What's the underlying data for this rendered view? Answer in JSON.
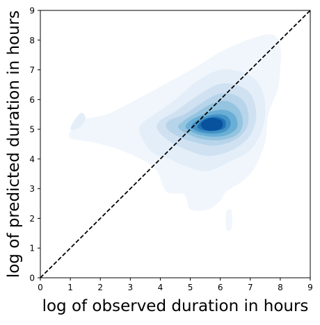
{
  "chart_data": {
    "type": "kde-contour",
    "title": "",
    "xlabel": "log of observed duration in hours",
    "ylabel": "log of predicted duration in hours",
    "xlim": [
      0,
      9
    ],
    "ylim": [
      0,
      9
    ],
    "xticks": [
      0,
      1,
      2,
      3,
      4,
      5,
      6,
      7,
      8,
      9
    ],
    "yticks": [
      0,
      1,
      2,
      3,
      4,
      5,
      6,
      7,
      8,
      9
    ],
    "grid": false,
    "colormap": "Blues",
    "mode": {
      "x": 5.65,
      "y": 5.15
    },
    "reference_line": {
      "style": "dashed",
      "color": "#000000",
      "points": [
        [
          0,
          0
        ],
        [
          9,
          9
        ]
      ]
    },
    "density_levels": [
      {
        "level": 1,
        "color": "#f1f6fc",
        "outline": [
          [
            1.0,
            4.7
          ],
          [
            1.8,
            4.55
          ],
          [
            2.8,
            4.25
          ],
          [
            3.8,
            3.7
          ],
          [
            4.2,
            2.9
          ],
          [
            4.8,
            2.8
          ],
          [
            5.0,
            2.3
          ],
          [
            5.6,
            2.3
          ],
          [
            6.0,
            2.6
          ],
          [
            6.2,
            2.9
          ],
          [
            6.8,
            3.3
          ],
          [
            7.2,
            3.8
          ],
          [
            7.5,
            4.6
          ],
          [
            7.6,
            5.5
          ],
          [
            7.9,
            6.3
          ],
          [
            8.0,
            7.0
          ],
          [
            8.0,
            7.8
          ],
          [
            7.7,
            8.2
          ],
          [
            6.9,
            8.0
          ],
          [
            6.0,
            7.6
          ],
          [
            5.2,
            7.1
          ],
          [
            4.3,
            6.6
          ],
          [
            3.2,
            6.0
          ],
          [
            2.2,
            5.5
          ],
          [
            1.3,
            5.3
          ],
          [
            1.05,
            5.0
          ]
        ]
      },
      {
        "level": 2,
        "color": "#e3eef8",
        "outline": [
          [
            3.3,
            4.9
          ],
          [
            3.7,
            4.25
          ],
          [
            4.3,
            4.0
          ],
          [
            5.0,
            3.7
          ],
          [
            5.6,
            3.6
          ],
          [
            6.3,
            3.9
          ],
          [
            7.0,
            4.3
          ],
          [
            7.4,
            5.0
          ],
          [
            7.5,
            5.8
          ],
          [
            7.3,
            6.5
          ],
          [
            6.8,
            6.9
          ],
          [
            6.0,
            7.0
          ],
          [
            5.2,
            6.6
          ],
          [
            4.5,
            6.0
          ],
          [
            3.8,
            5.5
          ],
          [
            3.4,
            5.2
          ]
        ]
      },
      {
        "level": 3,
        "color": "#d0e1f2",
        "outline": [
          [
            3.9,
            5.0
          ],
          [
            4.3,
            4.6
          ],
          [
            4.9,
            4.3
          ],
          [
            5.6,
            4.1
          ],
          [
            6.4,
            4.3
          ],
          [
            7.0,
            4.8
          ],
          [
            7.2,
            5.5
          ],
          [
            7.0,
            6.2
          ],
          [
            6.5,
            6.5
          ],
          [
            5.9,
            6.5
          ],
          [
            5.2,
            6.1
          ],
          [
            4.5,
            5.6
          ],
          [
            4.0,
            5.3
          ]
        ]
      },
      {
        "level": 4,
        "color": "#b7d4ea",
        "outline": [
          [
            4.2,
            5.05
          ],
          [
            4.6,
            4.75
          ],
          [
            5.2,
            4.55
          ],
          [
            5.8,
            4.45
          ],
          [
            6.5,
            4.65
          ],
          [
            6.9,
            5.1
          ],
          [
            6.9,
            5.7
          ],
          [
            6.6,
            6.1
          ],
          [
            6.0,
            6.2
          ],
          [
            5.4,
            5.9
          ],
          [
            4.8,
            5.5
          ],
          [
            4.3,
            5.3
          ]
        ]
      },
      {
        "level": 5,
        "color": "#94c4df",
        "outline": [
          [
            4.6,
            5.05
          ],
          [
            5.0,
            4.8
          ],
          [
            5.5,
            4.65
          ],
          [
            6.1,
            4.65
          ],
          [
            6.6,
            4.85
          ],
          [
            6.75,
            5.25
          ],
          [
            6.6,
            5.7
          ],
          [
            6.2,
            5.95
          ],
          [
            5.7,
            5.85
          ],
          [
            5.2,
            5.55
          ],
          [
            4.8,
            5.3
          ]
        ]
      },
      {
        "level": 6,
        "color": "#6aaed6",
        "outline": [
          [
            4.85,
            5.05
          ],
          [
            5.2,
            4.85
          ],
          [
            5.7,
            4.75
          ],
          [
            6.2,
            4.8
          ],
          [
            6.55,
            5.05
          ],
          [
            6.5,
            5.45
          ],
          [
            6.15,
            5.65
          ],
          [
            5.7,
            5.6
          ],
          [
            5.2,
            5.4
          ],
          [
            4.95,
            5.25
          ]
        ]
      },
      {
        "level": 7,
        "color": "#4292c6",
        "outline": [
          [
            5.05,
            5.05
          ],
          [
            5.35,
            4.9
          ],
          [
            5.8,
            4.85
          ],
          [
            6.2,
            4.95
          ],
          [
            6.35,
            5.2
          ],
          [
            6.2,
            5.45
          ],
          [
            5.8,
            5.5
          ],
          [
            5.35,
            5.35
          ],
          [
            5.1,
            5.2
          ]
        ]
      },
      {
        "level": 8,
        "color": "#2171b5",
        "outline": [
          [
            5.25,
            5.05
          ],
          [
            5.5,
            4.95
          ],
          [
            5.85,
            4.95
          ],
          [
            6.15,
            5.05
          ],
          [
            6.15,
            5.3
          ],
          [
            5.85,
            5.42
          ],
          [
            5.5,
            5.35
          ],
          [
            5.3,
            5.2
          ]
        ]
      },
      {
        "level": 9,
        "color": "#08519c",
        "outline": [
          [
            5.35,
            5.15
          ],
          [
            5.5,
            4.98
          ],
          [
            5.8,
            4.95
          ],
          [
            6.05,
            5.05
          ],
          [
            6.05,
            5.28
          ],
          [
            5.75,
            5.38
          ],
          [
            5.5,
            5.32
          ]
        ]
      }
    ],
    "islands": [
      {
        "color": "#e3eef8",
        "outline": [
          [
            1.0,
            5.0
          ],
          [
            1.2,
            5.4
          ],
          [
            1.4,
            5.55
          ],
          [
            1.5,
            5.35
          ],
          [
            1.3,
            5.05
          ]
        ]
      },
      {
        "color": "#f1f6fc",
        "outline": [
          [
            6.2,
            2.2
          ],
          [
            6.2,
            1.65
          ],
          [
            6.35,
            1.6
          ],
          [
            6.4,
            2.0
          ],
          [
            6.35,
            2.3
          ]
        ]
      }
    ]
  }
}
